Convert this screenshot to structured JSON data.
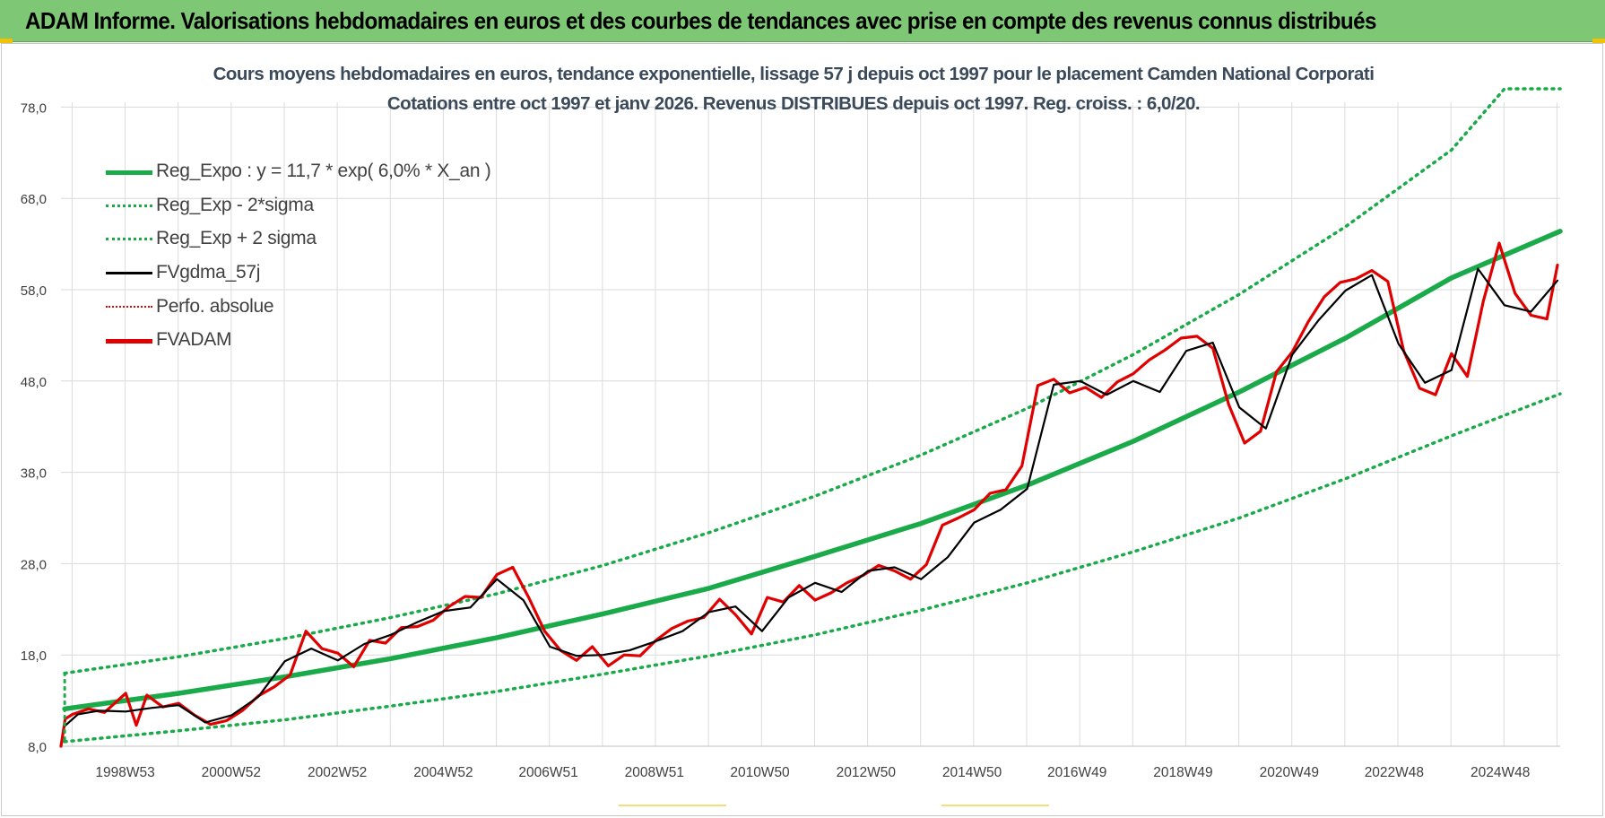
{
  "banner": {
    "title": "ADAM Informe. Valorisations hebdomadaires en euros et des courbes de tendances avec prise en compte des revenus connus distribués",
    "accent_color": "#7dc775"
  },
  "chart_data": {
    "type": "line",
    "title": "Cours moyens hebdomadaires en euros, tendance exponentielle, lissage 57 j depuis oct 1997 pour le placement Camden National Corporati",
    "subtitle": "Cotations entre oct 1997 et janv 2026. Revenus DISTRIBUES depuis oct 1997. Reg. croiss. : 6,0/20.",
    "xlabel": "",
    "ylabel": "",
    "x_range": [
      1997.78,
      2026.05
    ],
    "ylim": [
      8,
      80
    ],
    "yticks": [
      8.0,
      18.0,
      28.0,
      38.0,
      48.0,
      58.0,
      68.0,
      78.0
    ],
    "ytick_labels": [
      "8,0",
      "18,0",
      "28,0",
      "38,0",
      "48,0",
      "58,0",
      "68,0",
      "78,0"
    ],
    "xticks": [
      1998.99,
      2000.99,
      2002.99,
      2004.99,
      2006.97,
      2008.97,
      2010.96,
      2012.96,
      2014.96,
      2016.94,
      2018.94,
      2020.94,
      2022.92,
      2024.92
    ],
    "xtick_labels": [
      "1998W53",
      "2000W52",
      "2002W52",
      "2004W52",
      "2006W51",
      "2008W51",
      "2010W50",
      "2012W50",
      "2014W50",
      "2016W49",
      "2018W49",
      "2020W49",
      "2022W48",
      "2024W48"
    ],
    "grid": true,
    "legend_position": "top-left",
    "legend": [
      {
        "label": "Reg_Expo : y = 11,7 * exp( 6,0% *  X_an )",
        "color": "#1aaa4a",
        "style": "solid-thick"
      },
      {
        "label": "Reg_Exp - 2*sigma",
        "color": "#1aaa4a",
        "style": "dotted"
      },
      {
        "label": "Reg_Exp + 2 sigma",
        "color": "#1aaa4a",
        "style": "dotted"
      },
      {
        "label": "FVgdma_57j",
        "color": "#000000",
        "style": "solid"
      },
      {
        "label": "Perfo. absolue",
        "color": "#e00000",
        "style": "dotted"
      },
      {
        "label": "FVADAM",
        "color": "#e00000",
        "style": "solid-thick"
      }
    ],
    "series": [
      {
        "name": "Reg_Expo : y = 11,7 * exp( 6,0% *  X_an )",
        "color": "#1aaa4a",
        "x": [
          1997.85,
          2000,
          2002,
          2004,
          2006,
          2008,
          2010,
          2012,
          2014,
          2016,
          2018,
          2020,
          2022,
          2024,
          2026.05
        ],
        "values": [
          12.1,
          13.8,
          15.6,
          17.6,
          19.9,
          22.5,
          25.3,
          28.8,
          32.4,
          36.6,
          41.4,
          46.8,
          52.7,
          59.3,
          64.4
        ]
      },
      {
        "name": "Reg_Exp - 2*sigma",
        "color": "#1aaa4a",
        "x": [
          1997.85,
          2000,
          2002,
          2004,
          2006,
          2008,
          2010,
          2012,
          2014,
          2016,
          2018,
          2020,
          2022,
          2024,
          2026.05
        ],
        "values": [
          8.5,
          9.7,
          10.9,
          12.4,
          14.0,
          15.9,
          17.9,
          20.2,
          22.9,
          25.9,
          29.3,
          33.0,
          37.3,
          42.0,
          46.6
        ]
      },
      {
        "name": "Reg_Exp + 2 sigma",
        "color": "#1aaa4a",
        "x": [
          1997.85,
          2000,
          2002,
          2004,
          2006,
          2008,
          2010,
          2012,
          2014,
          2016,
          2018,
          2020,
          2022,
          2024,
          2025.0,
          2026.05
        ],
        "values": [
          16.0,
          17.8,
          19.8,
          22.1,
          24.7,
          27.8,
          31.4,
          35.4,
          39.9,
          45.0,
          50.9,
          57.5,
          64.9,
          73.3,
          80.0,
          80.0
        ]
      },
      {
        "name": "FVgdma_57j",
        "color": "#000000",
        "x": [
          1997.85,
          1998.1,
          1998.5,
          1999.0,
          1999.5,
          2000.0,
          2000.5,
          2001.0,
          2001.5,
          2002.0,
          2002.5,
          2003.0,
          2003.5,
          2004.0,
          2004.5,
          2005.0,
          2005.5,
          2006.0,
          2006.5,
          2007.0,
          2007.5,
          2008.0,
          2008.5,
          2009.0,
          2009.5,
          2010.0,
          2010.5,
          2011.0,
          2011.5,
          2012.0,
          2012.5,
          2013.0,
          2013.5,
          2014.0,
          2014.5,
          2015.0,
          2015.5,
          2016.0,
          2016.5,
          2017.0,
          2017.5,
          2018.0,
          2018.5,
          2019.0,
          2019.5,
          2020.0,
          2020.5,
          2021.0,
          2021.5,
          2022.0,
          2022.5,
          2023.0,
          2023.5,
          2024.0,
          2024.5,
          2025.0,
          2025.5,
          2026.0
        ],
        "values": [
          10.2,
          11.5,
          11.9,
          11.8,
          12.2,
          12.5,
          10.6,
          11.4,
          13.4,
          17.3,
          18.7,
          17.4,
          19.2,
          20.2,
          21.6,
          22.8,
          23.2,
          26.3,
          24.0,
          18.9,
          17.9,
          18.0,
          18.5,
          19.5,
          20.6,
          22.7,
          23.3,
          20.6,
          24.3,
          25.9,
          24.9,
          27.2,
          27.6,
          26.3,
          28.7,
          32.5,
          33.9,
          36.2,
          47.6,
          48.0,
          46.5,
          48.0,
          46.8,
          51.3,
          52.2,
          45.1,
          42.8,
          50.9,
          54.7,
          57.9,
          59.6,
          52.1,
          47.8,
          49.2,
          60.3,
          56.3,
          55.6,
          59.0
        ]
      },
      {
        "name": "FVADAM",
        "color": "#e00000",
        "x": [
          1997.78,
          1997.86,
          1998.0,
          1998.3,
          1998.6,
          1999.0,
          1999.2,
          1999.4,
          1999.7,
          2000.0,
          2000.3,
          2000.6,
          2000.9,
          2001.2,
          2001.5,
          2001.8,
          2002.1,
          2002.4,
          2002.7,
          2003.0,
          2003.3,
          2003.6,
          2003.9,
          2004.2,
          2004.5,
          2004.8,
          2005.1,
          2005.4,
          2005.7,
          2006.0,
          2006.3,
          2006.6,
          2006.9,
          2007.2,
          2007.5,
          2007.8,
          2008.1,
          2008.4,
          2008.7,
          2009.0,
          2009.3,
          2009.6,
          2009.9,
          2010.2,
          2010.5,
          2010.8,
          2011.1,
          2011.4,
          2011.7,
          2012.0,
          2012.3,
          2012.6,
          2012.9,
          2013.2,
          2013.5,
          2013.8,
          2014.1,
          2014.4,
          2014.7,
          2015.0,
          2015.3,
          2015.6,
          2015.9,
          2016.2,
          2016.5,
          2016.8,
          2017.1,
          2017.4,
          2017.7,
          2018.0,
          2018.3,
          2018.6,
          2018.9,
          2019.2,
          2019.5,
          2019.8,
          2020.1,
          2020.4,
          2020.7,
          2021.0,
          2021.3,
          2021.6,
          2021.9,
          2022.2,
          2022.5,
          2022.8,
          2023.1,
          2023.4,
          2023.7,
          2024.0,
          2024.3,
          2024.6,
          2024.9,
          2025.2,
          2025.5,
          2025.8,
          2026.0
        ],
        "values": [
          8.0,
          11.0,
          11.5,
          12.1,
          11.7,
          13.8,
          10.3,
          13.6,
          12.3,
          12.7,
          11.4,
          10.4,
          10.8,
          11.9,
          13.5,
          14.5,
          15.8,
          20.6,
          18.7,
          18.2,
          16.7,
          19.6,
          19.3,
          21.0,
          21.1,
          21.8,
          23.3,
          24.4,
          24.3,
          26.8,
          27.6,
          24.3,
          20.6,
          18.5,
          17.4,
          18.9,
          16.8,
          18.0,
          17.9,
          19.6,
          20.9,
          21.7,
          22.1,
          24.1,
          22.4,
          20.3,
          24.3,
          23.8,
          25.6,
          24.0,
          24.8,
          25.9,
          26.7,
          27.8,
          27.2,
          26.3,
          27.9,
          32.2,
          33.0,
          33.9,
          35.7,
          36.1,
          38.7,
          47.5,
          48.2,
          46.7,
          47.3,
          46.2,
          47.9,
          48.8,
          50.3,
          51.4,
          52.7,
          52.9,
          51.6,
          45.4,
          41.2,
          42.5,
          49.0,
          51.2,
          54.5,
          57.2,
          58.8,
          59.2,
          60.1,
          58.9,
          51.3,
          47.2,
          46.5,
          51.0,
          48.5,
          56.7,
          63.1,
          57.6,
          55.2,
          54.8,
          60.7
        ]
      }
    ]
  }
}
